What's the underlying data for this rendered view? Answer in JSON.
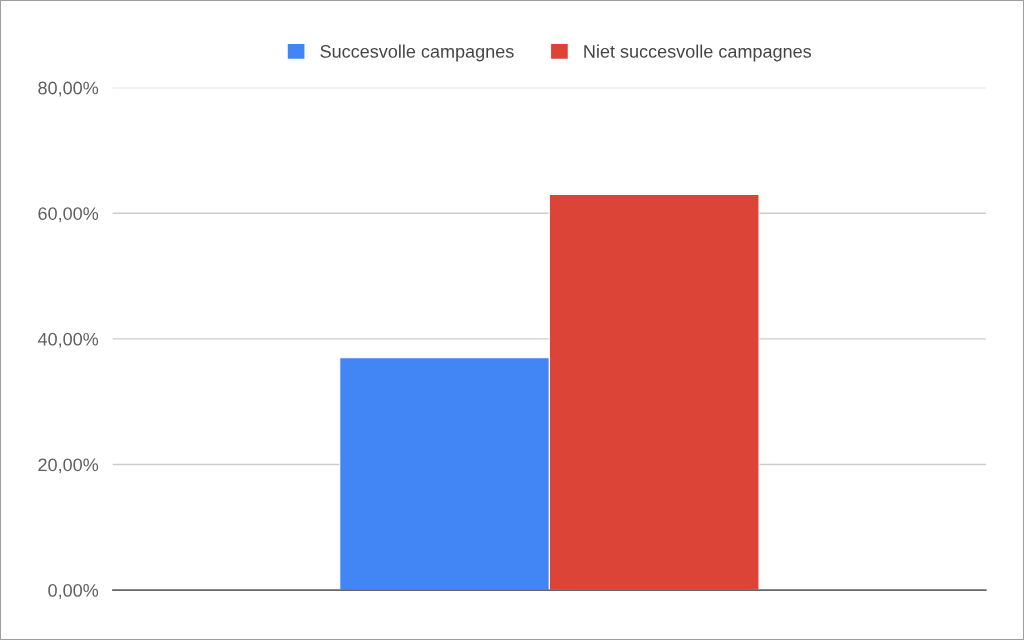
{
  "chart_data": {
    "type": "bar",
    "categories": [
      null
    ],
    "series": [
      {
        "name": "Succesvolle campagnes",
        "color": "#4285f4",
        "values": [
          37
        ]
      },
      {
        "name": "Niet succesvolle campagnes",
        "color": "#db4437",
        "values": [
          63
        ]
      }
    ],
    "ylim": [
      0,
      80
    ],
    "yticks": [
      {
        "value": 0,
        "label": "0,00%"
      },
      {
        "value": 20,
        "label": "20,00%"
      },
      {
        "value": 40,
        "label": "40,00%"
      },
      {
        "value": 60,
        "label": "60,00%"
      },
      {
        "value": 80,
        "label": "80,00%"
      }
    ],
    "grid": "y",
    "legend": "top"
  }
}
